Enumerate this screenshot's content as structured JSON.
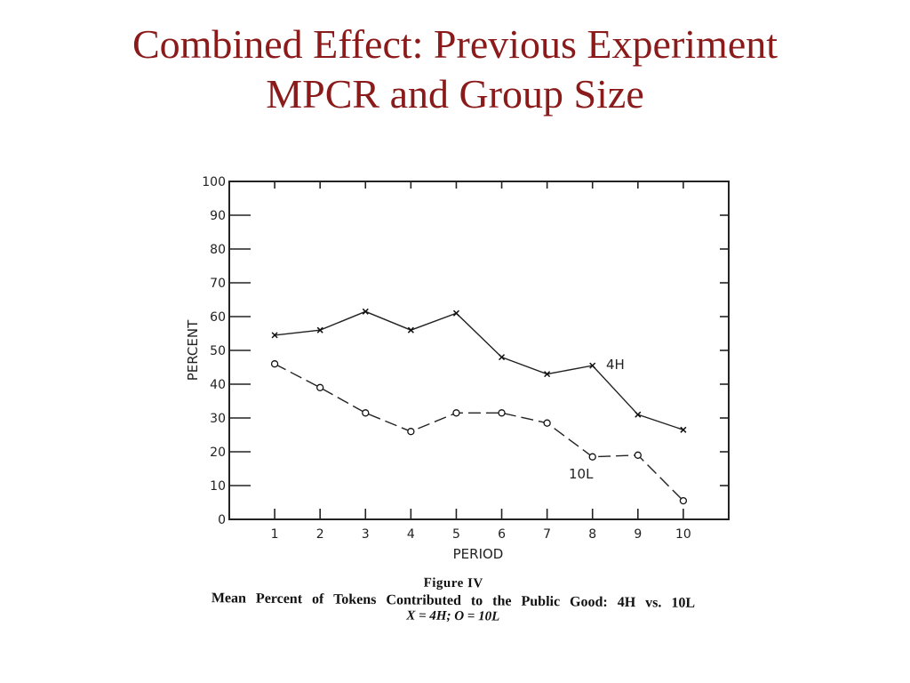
{
  "slide": {
    "title_line1": "Combined Effect: Previous Experiment",
    "title_line2": "MPCR and Group Size",
    "title_color": "#8b1a1a"
  },
  "figure": {
    "label": "Figure IV",
    "caption": "Mean Percent of Tokens Contributed to the Public Good: 4H vs. 10L",
    "legend": "X = 4H; O = 10L"
  },
  "chart_data": {
    "type": "line",
    "title": "",
    "xlabel": "PERIOD",
    "ylabel": "PERCENT",
    "x": [
      1,
      2,
      3,
      4,
      5,
      6,
      7,
      8,
      9,
      10
    ],
    "xlim": [
      0,
      11
    ],
    "ylim": [
      0,
      100
    ],
    "yticks": [
      0,
      10,
      20,
      30,
      40,
      50,
      60,
      70,
      80,
      90,
      100
    ],
    "grid": false,
    "series": [
      {
        "name": "4H",
        "marker": "x",
        "line_style": "solid",
        "values": [
          54.5,
          56,
          61.5,
          56,
          61,
          48,
          43,
          45.5,
          31,
          26.5
        ]
      },
      {
        "name": "10L",
        "marker": "o",
        "line_style": "dashed",
        "values": [
          46,
          39,
          31.5,
          26,
          31.5,
          31.5,
          28.5,
          18.5,
          19,
          5.5
        ]
      }
    ]
  }
}
